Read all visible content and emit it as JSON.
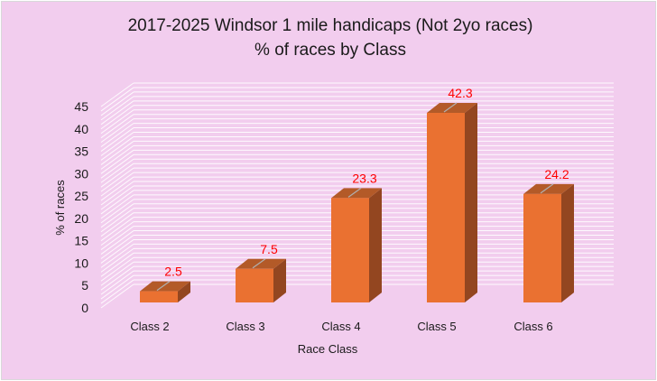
{
  "chart": {
    "title_line1": "2017-2025 Windsor 1 mile handicaps (Not 2yo races)",
    "title_line2": "% of races by Class",
    "xlabel": "Race Class",
    "ylabel": "% of races"
  },
  "colors": {
    "background": "#f2cdee",
    "bar_front": "#ea7131",
    "bar_top": "#b35a28",
    "bar_side": "#934620",
    "gridline": "#ffffff",
    "data_label": "#ff0000"
  },
  "chart_data": {
    "type": "bar",
    "title": "2017-2025 Windsor 1 mile handicaps (Not 2yo races) % of races by Class",
    "categories": [
      "Class 2",
      "Class 3",
      "Class 4",
      "Class 5",
      "Class 6"
    ],
    "values": [
      2.5,
      7.5,
      23.3,
      42.3,
      24.2
    ],
    "data_labels": [
      "2.5",
      "7.5",
      "23.3",
      "42.3",
      "24.2"
    ],
    "xlabel": "Race Class",
    "ylabel": "% of races",
    "ylim": [
      0,
      45
    ],
    "yticks": [
      0,
      5,
      10,
      15,
      20,
      25,
      30,
      35,
      40,
      45
    ],
    "grid": true,
    "legend": "none",
    "style": "3d-column"
  }
}
